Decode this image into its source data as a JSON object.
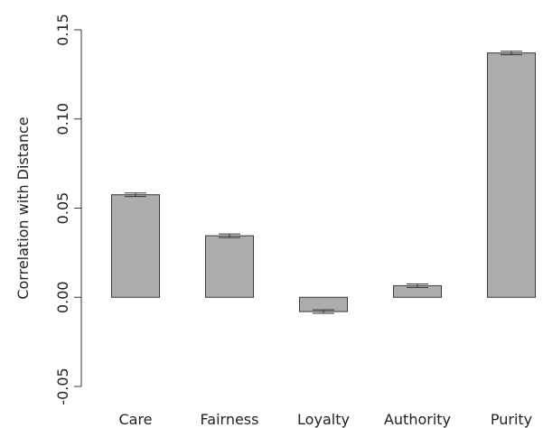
{
  "chart_data": {
    "type": "bar",
    "title": "",
    "xlabel": "",
    "ylabel": "Correlation with Distance",
    "categories": [
      "Care",
      "Fairness",
      "Loyalty",
      "Authority",
      "Purity"
    ],
    "values": [
      0.0575,
      0.0345,
      -0.008,
      0.0065,
      0.137
    ],
    "error": [
      0.001,
      0.001,
      0.001,
      0.001,
      0.001
    ],
    "ylim": [
      -0.05,
      0.15
    ],
    "yticks": [
      -0.05,
      0.0,
      0.05,
      0.1,
      0.15
    ],
    "ytick_labels": [
      "-0.05",
      "0.00",
      "0.05",
      "0.10",
      "0.15"
    ],
    "grid": false,
    "bar_color": "#adadad",
    "edge_color": "#3a3a3a"
  }
}
